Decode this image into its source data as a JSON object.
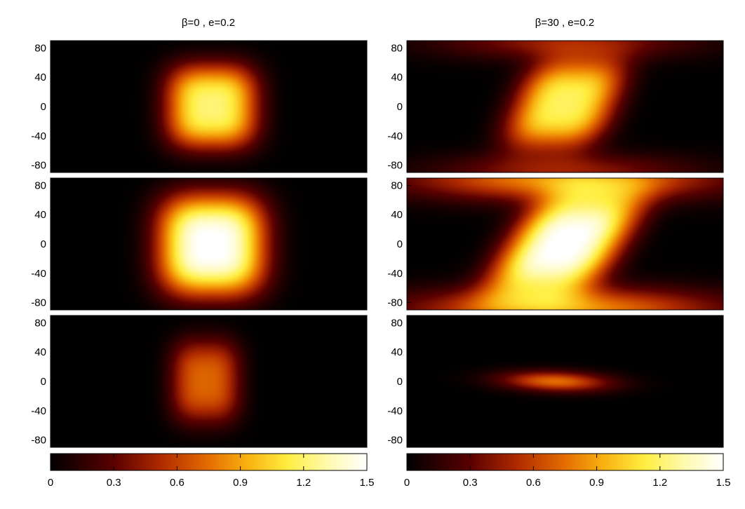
{
  "chart_data": [
    {
      "type": "heatmap",
      "column": 0,
      "title": "β=0 , e=0.2",
      "panels": [
        {
          "yticks": [
            "80",
            "40",
            "0",
            "-40",
            "-80"
          ],
          "ylim": [
            -90,
            90
          ],
          "blobs": [
            {
              "cx": 0.51,
              "cy": 0.0,
              "sx": 0.145,
              "sy": 58,
              "peak": 1.22,
              "power": 3
            }
          ]
        },
        {
          "yticks": [
            "80",
            "40",
            "0",
            "-40",
            "-80"
          ],
          "ylim": [
            -90,
            90
          ],
          "blobs": [
            {
              "cx": 0.51,
              "cy": -2,
              "sx": 0.17,
              "sy": 70,
              "peak": 1.52,
              "power": 3
            }
          ]
        },
        {
          "yticks": [
            "80",
            "40",
            "0",
            "-40",
            "-80"
          ],
          "ylim": [
            -90,
            90
          ],
          "blobs": [
            {
              "cx": 0.49,
              "cy": 0.0,
              "sx": 0.11,
              "sy": 58,
              "peak": 0.72,
              "power": 3
            }
          ]
        }
      ],
      "colorbar": {
        "range": [
          0,
          1.5
        ],
        "ticks": [
          "0",
          "0.3",
          "0.6",
          "0.9",
          "1.2",
          "1.5"
        ]
      }
    },
    {
      "type": "heatmap",
      "column": 1,
      "title": "β=30 , e=0.2",
      "panels": [
        {
          "yticks": [
            "80",
            "40",
            "0",
            "-40",
            "-80"
          ],
          "ylim": [
            -90,
            90
          ],
          "blobs": [
            {
              "cx": 0.5,
              "cy": 4,
              "sx": 0.16,
              "sy": 62,
              "peak": 1.18,
              "power": 3,
              "shear": 0.25
            },
            {
              "cx": 0.5,
              "cy": 90,
              "sx": 0.4,
              "sy": 25,
              "peak": 0.45,
              "power": 2
            },
            {
              "cx": 0.5,
              "cy": -90,
              "sx": 0.4,
              "sy": 25,
              "peak": 0.45,
              "power": 2
            }
          ]
        },
        {
          "yticks": [
            "80",
            "40",
            "0",
            "-40",
            "-80"
          ],
          "ylim": [
            -90,
            90
          ],
          "blobs": [
            {
              "cx": 0.5,
              "cy": 0,
              "sx": 0.18,
              "sy": 72,
              "peak": 1.52,
              "power": 3,
              "shear": 0.35
            },
            {
              "cx": 0.5,
              "cy": 90,
              "sx": 0.5,
              "sy": 30,
              "peak": 0.85,
              "power": 2
            },
            {
              "cx": 0.5,
              "cy": -90,
              "sx": 0.5,
              "sy": 30,
              "peak": 0.85,
              "power": 2
            }
          ]
        },
        {
          "yticks": [
            "80",
            "40",
            "0",
            "-40",
            "-80"
          ],
          "ylim": [
            -90,
            90
          ],
          "blobs": [
            {
              "cx": 0.47,
              "cy": 0,
              "sx": 0.17,
              "sy": 14,
              "peak": 0.75,
              "power": 2,
              "shear": -0.55
            }
          ]
        }
      ],
      "colorbar": {
        "range": [
          0,
          1.5
        ],
        "ticks": [
          "0",
          "0.3",
          "0.6",
          "0.9",
          "1.2",
          "1.5"
        ]
      }
    }
  ]
}
